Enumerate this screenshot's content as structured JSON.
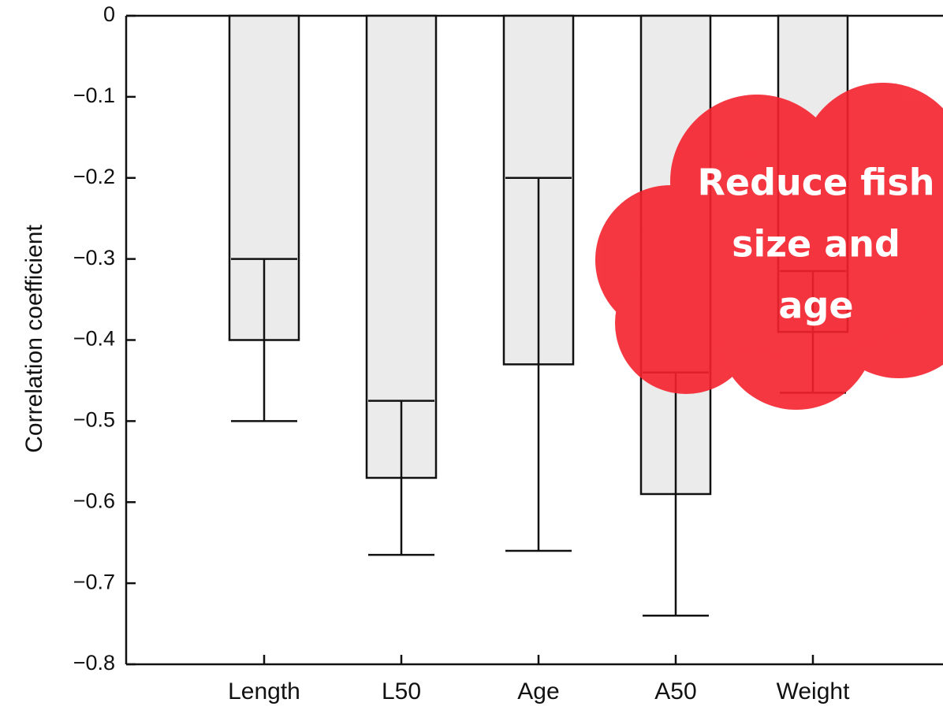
{
  "chart_data": {
    "type": "bar",
    "y_label": "Correlation coefficient",
    "categories": [
      "Length",
      "L50",
      "Age",
      "A50",
      "Weight"
    ],
    "values": [
      -0.4,
      -0.57,
      -0.43,
      -0.59,
      -0.39
    ],
    "errors": [
      0.1,
      0.095,
      0.23,
      0.15,
      0.075
    ],
    "color": "#ebebeb",
    "ylim": [
      -0.8,
      0
    ],
    "yticks": [
      0,
      {
        "value": -0.1,
        "label": "−0.1"
      },
      {
        "value": -0.2,
        "label": "−0.2"
      },
      {
        "value": -0.3,
        "label": "−0.3"
      },
      {
        "value": -0.4,
        "label": "−0.4"
      },
      {
        "value": -0.5,
        "label": "−0.5"
      },
      {
        "value": -0.6,
        "label": "−0.6"
      },
      {
        "value": -0.7,
        "label": "−0.7"
      },
      {
        "value": -0.8,
        "label": "−0.8"
      }
    ],
    "annotation": [
      "Reduce fish",
      "size and",
      "age"
    ]
  }
}
